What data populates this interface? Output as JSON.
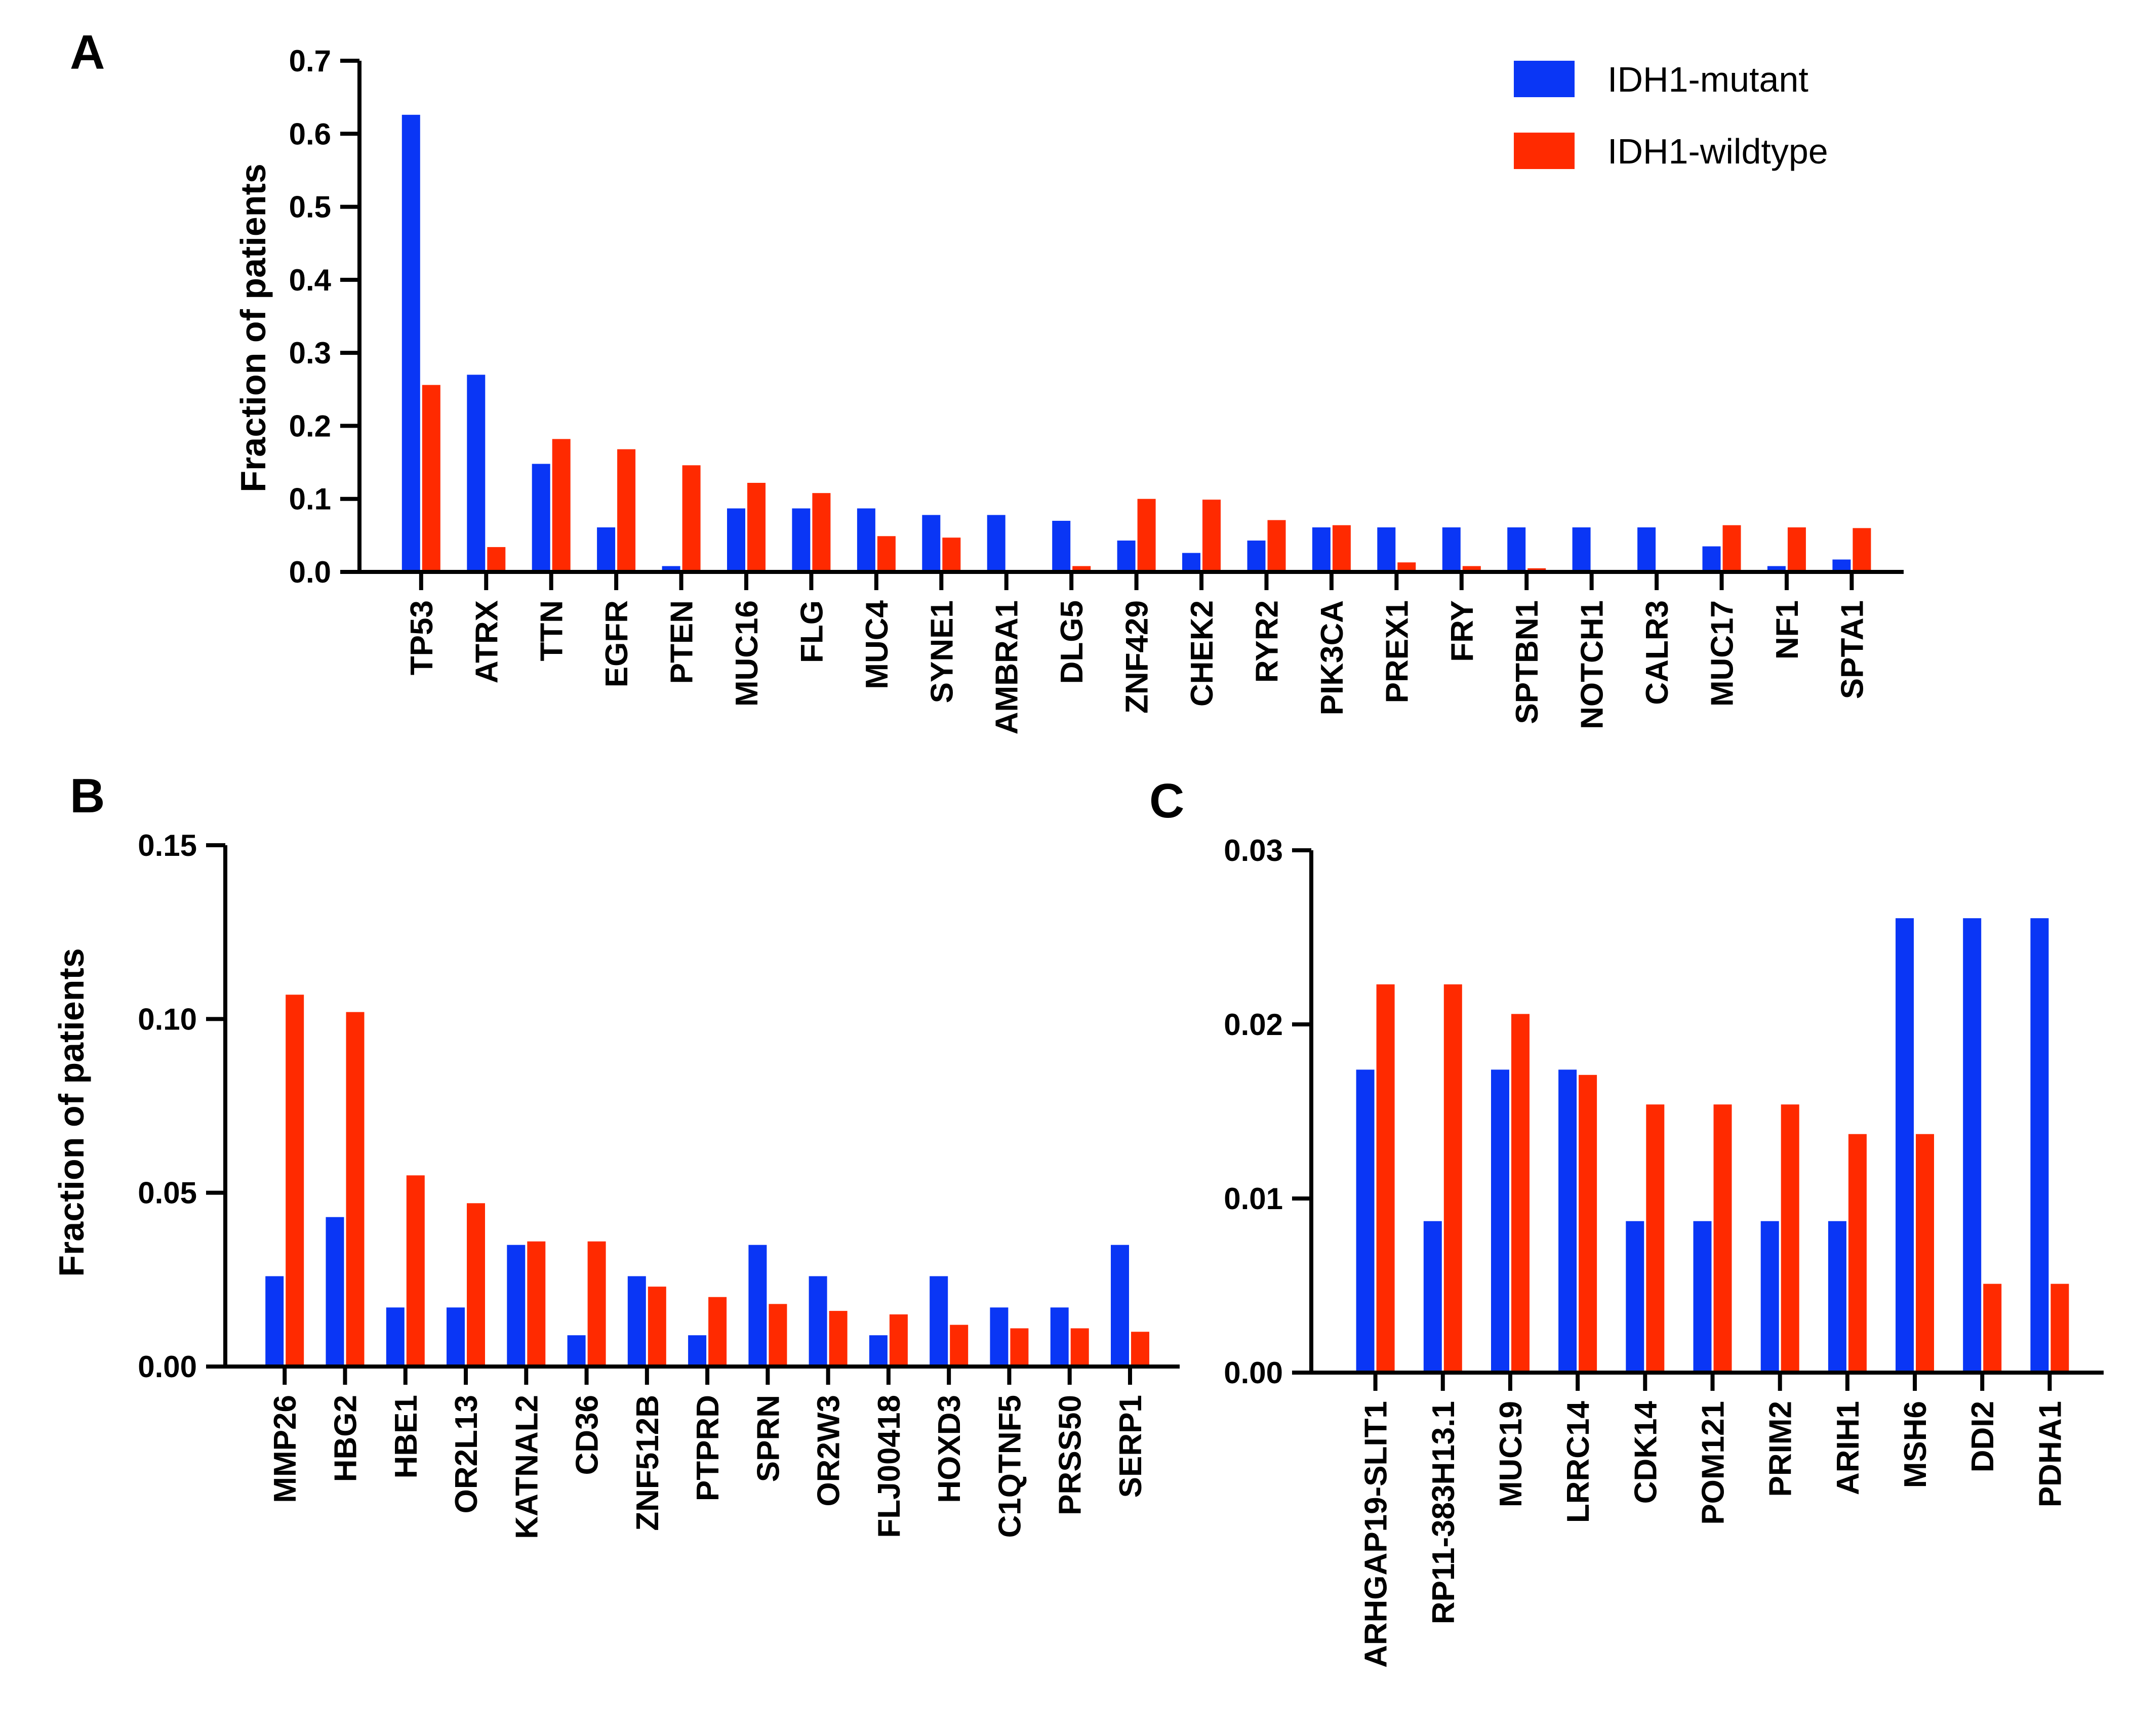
{
  "colors": {
    "mutant": "#0a36f5",
    "wildtype": "#ff2a00",
    "axis": "#000000"
  },
  "legend": {
    "mutant": "IDH1-mutant",
    "wildtype": "IDH1-wildtype"
  },
  "chart_data": [
    {
      "panel": "A",
      "type": "bar",
      "ylabel": "Fraction of patients",
      "ylim": [
        0,
        0.7
      ],
      "yticks": [
        "0.0",
        "0.1",
        "0.2",
        "0.3",
        "0.4",
        "0.5",
        "0.6",
        "0.7"
      ],
      "categories": [
        "TP53",
        "ATRX",
        "TTN",
        "EGFR",
        "PTEN",
        "MUC16",
        "FLG",
        "MUC4",
        "SYNE1",
        "AMBRA1",
        "DLG5",
        "ZNF429",
        "CHEK2",
        "RYR2",
        "PIK3CA",
        "PREX1",
        "FRY",
        "SPTBN1",
        "NOTCH1",
        "CALR3",
        "MUC17",
        "NF1",
        "SPTA1"
      ],
      "series": [
        {
          "name": "IDH1-mutant",
          "values": [
            0.626,
            0.27,
            0.148,
            0.061,
            0.008,
            0.087,
            0.087,
            0.087,
            0.078,
            0.078,
            0.07,
            0.043,
            0.026,
            0.043,
            0.061,
            0.061,
            0.061,
            0.061,
            0.061,
            0.061,
            0.035,
            0.008,
            0.017
          ]
        },
        {
          "name": "IDH1-wildtype",
          "values": [
            0.256,
            0.034,
            0.182,
            0.168,
            0.146,
            0.122,
            0.108,
            0.049,
            0.047,
            0.0,
            0.008,
            0.1,
            0.099,
            0.071,
            0.064,
            0.013,
            0.008,
            0.005,
            0.0,
            0.0,
            0.064,
            0.061,
            0.06
          ]
        }
      ]
    },
    {
      "panel": "B",
      "type": "bar",
      "ylabel": "Fraction of patients",
      "ylim": [
        0,
        0.15
      ],
      "yticks": [
        "0.00",
        "0.05",
        "0.10",
        "0.15"
      ],
      "categories": [
        "MMP26",
        "HBG2",
        "HBE1",
        "OR2L13",
        "KATNAL2",
        "CD36",
        "ZNF512B",
        "PTPRD",
        "SPRN",
        "OR2W3",
        "FLJ00418",
        "HOXD3",
        "C1QTNF5",
        "PRSS50",
        "SERP1"
      ],
      "series": [
        {
          "name": "IDH1-mutant",
          "values": [
            0.026,
            0.043,
            0.017,
            0.017,
            0.035,
            0.009,
            0.026,
            0.009,
            0.035,
            0.026,
            0.009,
            0.026,
            0.017,
            0.017,
            0.035
          ]
        },
        {
          "name": "IDH1-wildtype",
          "values": [
            0.107,
            0.102,
            0.055,
            0.047,
            0.036,
            0.036,
            0.023,
            0.02,
            0.018,
            0.016,
            0.015,
            0.012,
            0.011,
            0.011,
            0.01
          ]
        }
      ]
    },
    {
      "panel": "C",
      "type": "bar",
      "ylabel": "",
      "ylim": [
        0,
        0.03
      ],
      "yticks": [
        "0.00",
        "0.01",
        "0.02",
        "0.03"
      ],
      "categories": [
        "ARHGAP19-SLIT1",
        "RP11-383H13.1",
        "MUC19",
        "LRRC14",
        "CDK14",
        "POM121",
        "PRIM2",
        "ARIH1",
        "MSH6",
        "DDI2",
        "PDHA1"
      ],
      "series": [
        {
          "name": "IDH1-mutant",
          "values": [
            0.0174,
            0.0087,
            0.0174,
            0.0174,
            0.0087,
            0.0087,
            0.0087,
            0.0087,
            0.0261,
            0.0261,
            0.0261
          ]
        },
        {
          "name": "IDH1-wildtype",
          "values": [
            0.0223,
            0.0223,
            0.0206,
            0.0171,
            0.0154,
            0.0154,
            0.0154,
            0.0137,
            0.0137,
            0.0051,
            0.0051
          ]
        }
      ]
    }
  ]
}
